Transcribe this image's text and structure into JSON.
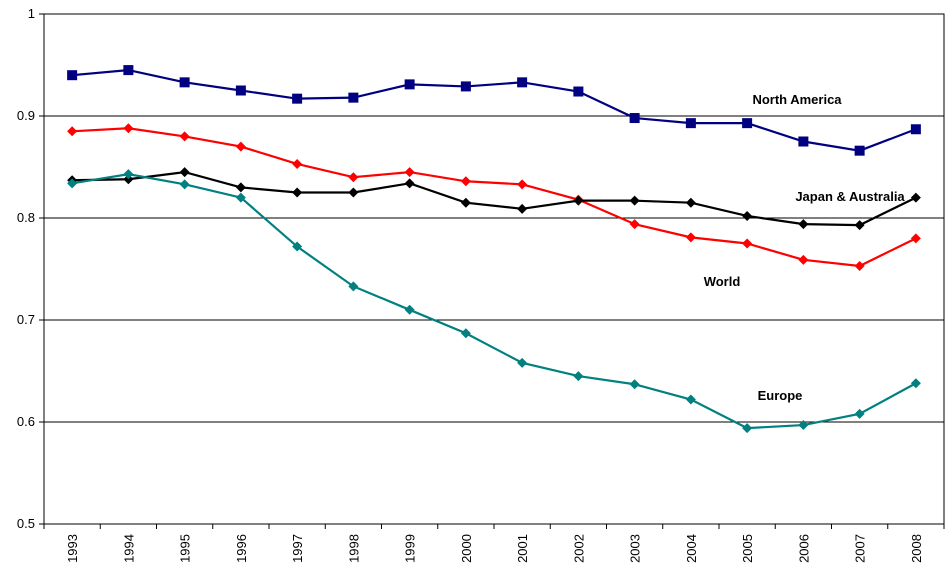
{
  "chart_data": {
    "type": "line",
    "categories": [
      "1993",
      "1994",
      "1995",
      "1996",
      "1997",
      "1998",
      "1999",
      "2000",
      "2001",
      "2002",
      "2003",
      "2004",
      "2005",
      "2006",
      "2007",
      "2008"
    ],
    "series": [
      {
        "name": "North America",
        "color": "#000080",
        "marker": "square",
        "values": [
          0.94,
          0.945,
          0.933,
          0.925,
          0.917,
          0.918,
          0.931,
          0.929,
          0.933,
          0.924,
          0.898,
          0.893,
          0.893,
          0.875,
          0.866,
          0.887
        ]
      },
      {
        "name": "World",
        "color": "#ff0000",
        "marker": "diamond",
        "values": [
          0.885,
          0.888,
          0.88,
          0.87,
          0.853,
          0.84,
          0.845,
          0.836,
          0.833,
          0.818,
          0.794,
          0.781,
          0.775,
          0.759,
          0.753,
          0.78
        ]
      },
      {
        "name": "Japan & Australia",
        "color": "#000000",
        "marker": "diamond",
        "values": [
          0.837,
          0.838,
          0.845,
          0.83,
          0.825,
          0.825,
          0.834,
          0.815,
          0.809,
          0.817,
          0.817,
          0.815,
          0.802,
          0.794,
          0.793,
          0.82
        ]
      },
      {
        "name": "Europe",
        "color": "#008080",
        "marker": "diamond",
        "values": [
          0.834,
          0.843,
          0.833,
          0.82,
          0.772,
          0.733,
          0.71,
          0.687,
          0.658,
          0.645,
          0.637,
          0.622,
          0.594,
          0.597,
          0.608,
          0.638
        ]
      }
    ],
    "ylim": [
      0.5,
      1
    ],
    "yticks": [
      0.5,
      0.6,
      0.7,
      0.8,
      0.9,
      1
    ],
    "grid": true
  }
}
